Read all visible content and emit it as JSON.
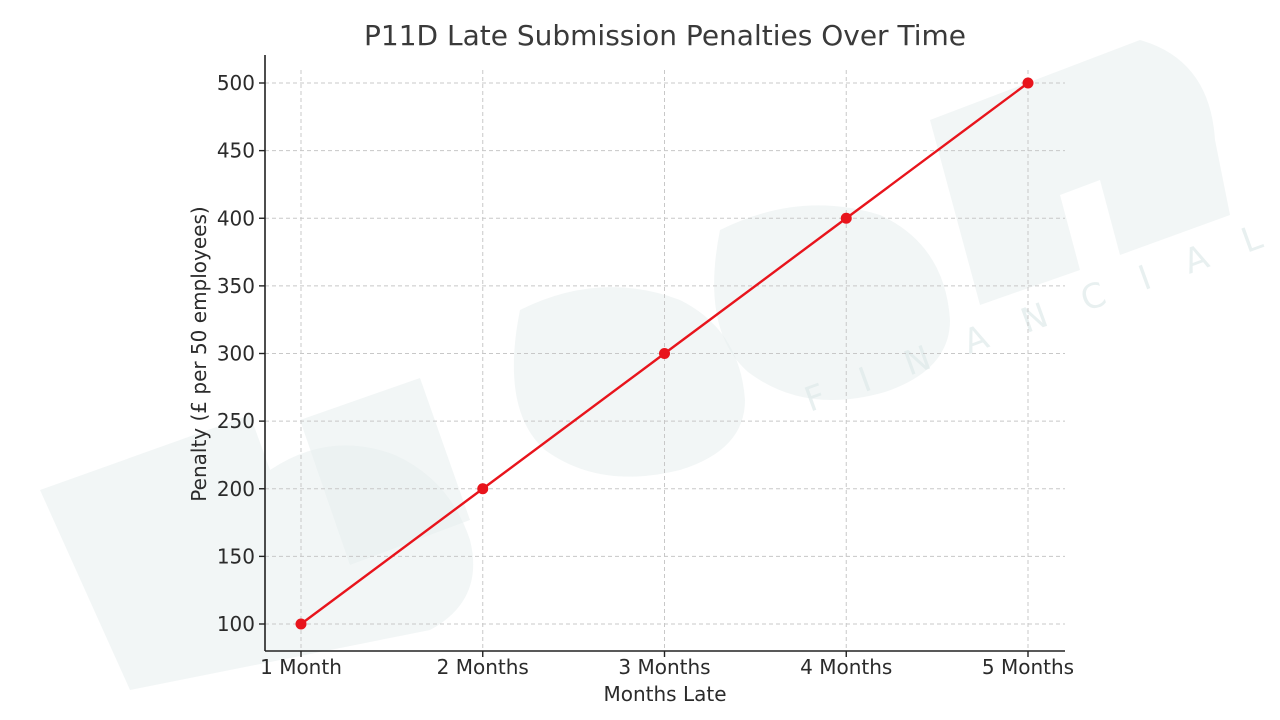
{
  "chart_data": {
    "type": "line",
    "title": "P11D Late Submission Penalties Over Time",
    "xlabel": "Months Late",
    "ylabel": "Penalty (£ per 50 employees)",
    "categories": [
      "1 Month",
      "2 Months",
      "3 Months",
      "4 Months",
      "5 Months"
    ],
    "series": [
      {
        "name": "Penalty",
        "values": [
          100,
          200,
          300,
          400,
          500
        ],
        "color": "#e8141c"
      }
    ],
    "yticks": [
      100,
      150,
      200,
      250,
      300,
      350,
      400,
      450,
      500
    ],
    "ylim": [
      80,
      520
    ],
    "grid": true
  },
  "watermark": {
    "brand": "bloom",
    "tagline": "FINANCIALS",
    "color": "#e7efef"
  }
}
